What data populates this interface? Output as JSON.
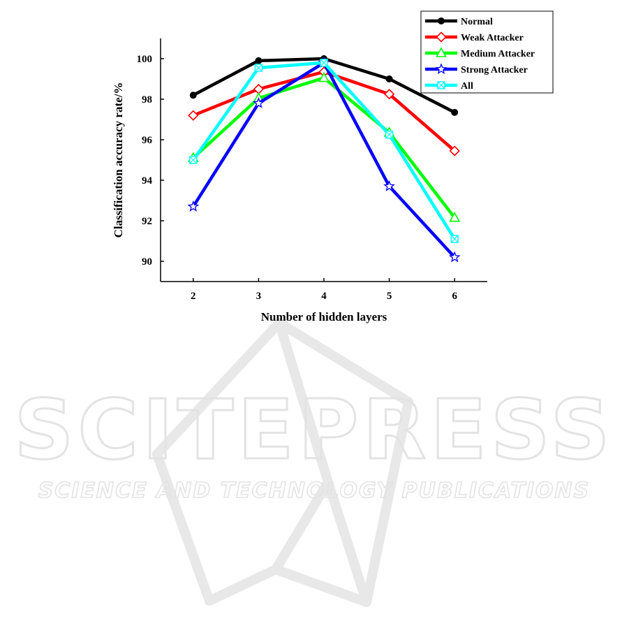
{
  "watermark": {
    "title": "SCITEPRESS",
    "subtitle": "SCIENCE AND TECHNOLOGY PUBLICATIONS"
  },
  "chart_data": {
    "type": "line",
    "title": "",
    "xlabel": "Number of hidden layers",
    "ylabel": "Classification accuracy rate/%",
    "x": [
      2,
      3,
      4,
      5,
      6
    ],
    "xlim": [
      1.5,
      6.5
    ],
    "ylim": [
      89,
      101
    ],
    "yticks": [
      90,
      92,
      94,
      96,
      98,
      100
    ],
    "grid": false,
    "legend_position": "top-right",
    "series": [
      {
        "name": "Normal",
        "color": "#000000",
        "marker": "circle",
        "values": [
          98.2,
          99.9,
          100.0,
          99.0,
          97.35
        ]
      },
      {
        "name": "Weak Attacker",
        "color": "#ff0000",
        "marker": "diamond",
        "values": [
          97.2,
          98.5,
          99.35,
          98.25,
          95.45
        ]
      },
      {
        "name": "Medium Attacker",
        "color": "#00ff00",
        "marker": "triangle",
        "values": [
          95.1,
          98.05,
          99.05,
          96.35,
          92.15
        ]
      },
      {
        "name": "Strong Attacker",
        "color": "#0000ff",
        "marker": "star",
        "values": [
          92.7,
          97.8,
          99.8,
          93.7,
          90.2
        ]
      },
      {
        "name": "All",
        "color": "#00ffff",
        "marker": "square-x",
        "values": [
          95.0,
          99.55,
          99.8,
          96.25,
          91.1
        ]
      }
    ]
  }
}
